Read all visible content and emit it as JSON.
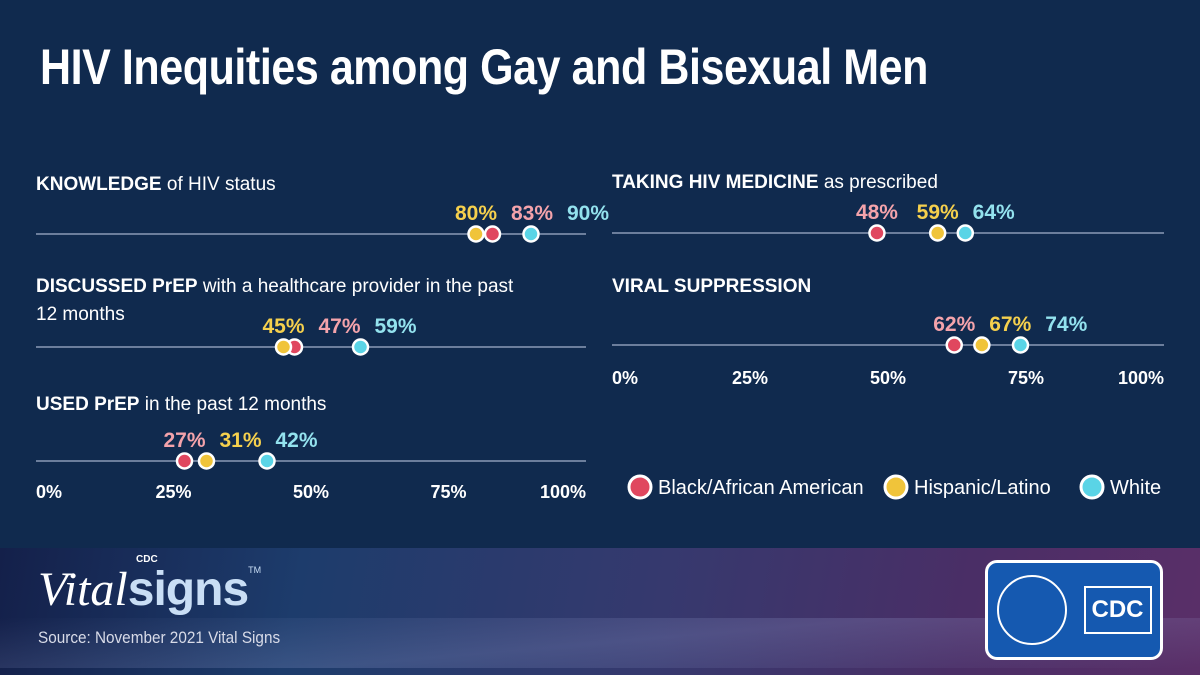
{
  "title": "HIV Inequities among Gay and Bisexual Men",
  "colors": {
    "background": "#102a4e",
    "black_african_american": "#e0475f",
    "hispanic_latino": "#f0c43a",
    "white": "#5ad4e6"
  },
  "chart_data": [
    {
      "type": "dot",
      "title_bold": "KNOWLEDGE",
      "title_rest": " of HIV status",
      "xlim": [
        0,
        100
      ],
      "ticks": [
        "0%",
        "25%",
        "50%",
        "75%",
        "100%"
      ],
      "show_ticks": false,
      "series": [
        {
          "name": "Black/African American",
          "value": 83
        },
        {
          "name": "Hispanic/Latino",
          "value": 80
        },
        {
          "name": "White",
          "value": 90
        }
      ]
    },
    {
      "type": "dot",
      "title_bold": "DISCUSSED PrEP",
      "title_rest": " with a healthcare provider in the past",
      "title_line2": "12 months",
      "xlim": [
        0,
        100
      ],
      "show_ticks": false,
      "series": [
        {
          "name": "Black/African American",
          "value": 47
        },
        {
          "name": "Hispanic/Latino",
          "value": 45
        },
        {
          "name": "White",
          "value": 59
        }
      ]
    },
    {
      "type": "dot",
      "title_bold": "USED PrEP",
      "title_rest": " in the past 12 months",
      "xlim": [
        0,
        100
      ],
      "ticks": [
        "0%",
        "25%",
        "50%",
        "75%",
        "100%"
      ],
      "show_ticks": true,
      "series": [
        {
          "name": "Black/African American",
          "value": 27
        },
        {
          "name": "Hispanic/Latino",
          "value": 31
        },
        {
          "name": "White",
          "value": 42
        }
      ]
    },
    {
      "type": "dot",
      "title_bold": "TAKING HIV MEDICINE",
      "title_rest": " as prescribed",
      "xlim": [
        0,
        100
      ],
      "show_ticks": false,
      "series": [
        {
          "name": "Black/African American",
          "value": 48
        },
        {
          "name": "Hispanic/Latino",
          "value": 59
        },
        {
          "name": "White",
          "value": 64
        }
      ]
    },
    {
      "type": "dot",
      "title_bold": "VIRAL SUPPRESSION",
      "title_rest": "",
      "xlim": [
        0,
        100
      ],
      "ticks": [
        "0%",
        "25%",
        "50%",
        "75%",
        "100%"
      ],
      "show_ticks": true,
      "series": [
        {
          "name": "Black/African American",
          "value": 62
        },
        {
          "name": "Hispanic/Latino",
          "value": 67
        },
        {
          "name": "White",
          "value": 74
        }
      ]
    }
  ],
  "legend": [
    "Black/African American",
    "Hispanic/Latino",
    "White"
  ],
  "footer": {
    "brand_cdc": "CDC",
    "brand_vital": "Vital",
    "brand_signs": "signs",
    "brand_tm": "TM",
    "source": "Source: November 2021 Vital Signs",
    "logo_text": "CDC"
  }
}
